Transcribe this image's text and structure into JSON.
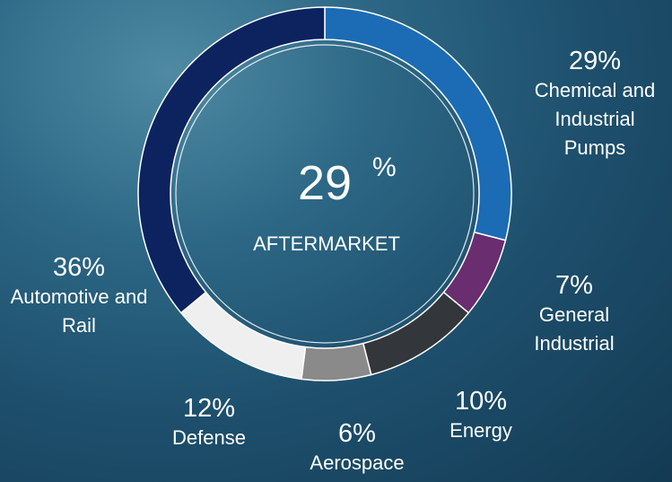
{
  "chart_data": {
    "type": "donut",
    "center_value": 29,
    "center_unit": "%",
    "center_label": "AFTERMARKET",
    "categories": [
      "Chemical and Industrial Pumps",
      "General Industrial",
      "Energy",
      "Aerospace",
      "Defense",
      "Automotive and Rail"
    ],
    "values": [
      29,
      7,
      10,
      6,
      12,
      36
    ],
    "value_labels": [
      "29%",
      "7%",
      "10%",
      "6%",
      "12%",
      "36%"
    ],
    "colors": [
      "#1b6cb5",
      "#6a2d6f",
      "#33363a",
      "#8a8a8a",
      "#efefef",
      "#0c2360"
    ]
  }
}
